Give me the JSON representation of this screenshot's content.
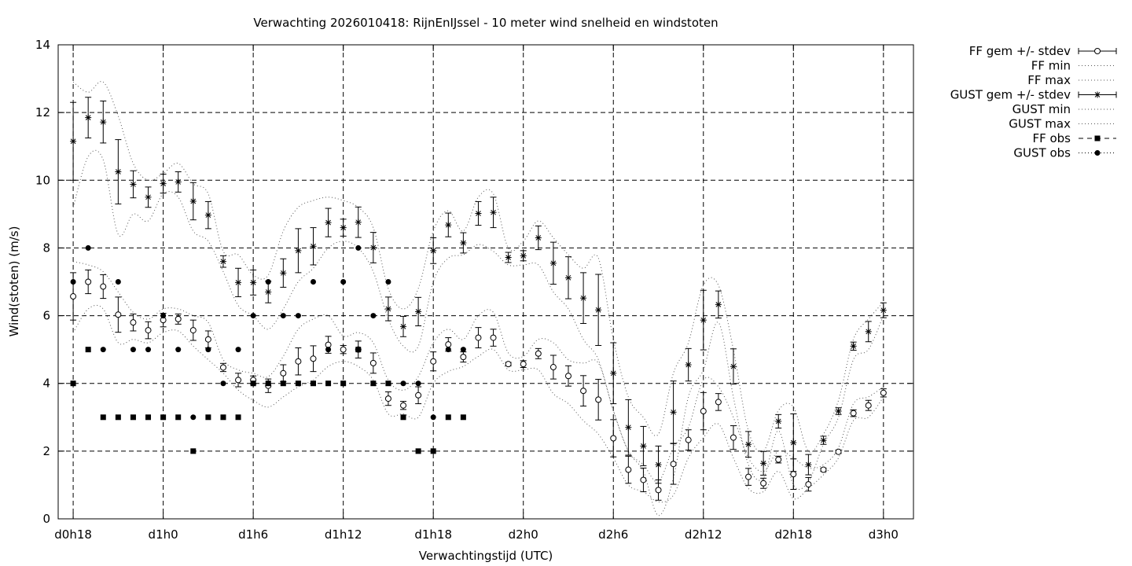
{
  "chart_data": {
    "type": "line",
    "title": "Verwachting 2026010418: RijnEnIJssel - 10 meter wind snelheid en windstoten",
    "xlabel": "Verwachtingstijd (UTC)",
    "ylabel": "Wind(stoten) (m/s)",
    "ylim": [
      0,
      14
    ],
    "yticks": [
      0,
      2,
      4,
      6,
      8,
      10,
      12,
      14
    ],
    "xlim": [
      17,
      74
    ],
    "xticks": [
      {
        "x": 18,
        "label": "d0h18"
      },
      {
        "x": 24,
        "label": "d1h0"
      },
      {
        "x": 30,
        "label": "d1h6"
      },
      {
        "x": 36,
        "label": "d1h12"
      },
      {
        "x": 42,
        "label": "d1h18"
      },
      {
        "x": 48,
        "label": "d2h0"
      },
      {
        "x": 54,
        "label": "d2h6"
      },
      {
        "x": 60,
        "label": "d2h12"
      },
      {
        "x": 66,
        "label": "d2h18"
      },
      {
        "x": 72,
        "label": "d3h0"
      }
    ],
    "grid": true,
    "legend_position": "outside-right",
    "legend": [
      {
        "label": "FF gem +/- stdev",
        "style": "errorbar-circle"
      },
      {
        "label": "FF min",
        "style": "dotted"
      },
      {
        "label": "FF max",
        "style": "dotted"
      },
      {
        "label": "GUST gem +/- stdev",
        "style": "errorbar-star"
      },
      {
        "label": "GUST min",
        "style": "dotted"
      },
      {
        "label": "GUST max",
        "style": "dotted"
      },
      {
        "label": "FF obs",
        "style": "square-dashed"
      },
      {
        "label": "GUST obs",
        "style": "dot-dotted"
      }
    ],
    "x": [
      18,
      19,
      20,
      21,
      22,
      23,
      24,
      25,
      26,
      27,
      28,
      29,
      30,
      31,
      32,
      33,
      34,
      35,
      36,
      37,
      38,
      39,
      40,
      41,
      42,
      43,
      44,
      45,
      46,
      47,
      48,
      49,
      50,
      51,
      52,
      53,
      54,
      55,
      56,
      57,
      58,
      59,
      60,
      61,
      62,
      63,
      64,
      65,
      66,
      67,
      68,
      69,
      70,
      71,
      72
    ],
    "series": [
      {
        "name": "FF gem +/- stdev",
        "values": [
          6.57,
          7.0,
          6.86,
          6.03,
          5.8,
          5.57,
          5.87,
          5.9,
          5.57,
          5.3,
          4.47,
          4.1,
          4.1,
          3.93,
          4.3,
          4.65,
          4.73,
          5.14,
          5.0,
          5.0,
          4.6,
          3.55,
          3.35,
          3.65,
          4.65,
          5.15,
          4.78,
          5.35,
          5.35,
          4.57,
          4.57,
          4.88,
          4.48,
          4.22,
          3.78,
          3.52,
          2.38,
          1.45,
          1.15,
          0.85,
          1.62,
          2.33,
          3.18,
          3.45,
          2.4,
          1.24,
          1.05,
          1.75,
          1.32,
          1.02,
          1.45,
          1.98,
          3.12,
          3.35,
          3.72
        ],
        "stdev": [
          0.7,
          0.35,
          0.35,
          0.52,
          0.25,
          0.25,
          0.2,
          0.15,
          0.3,
          0.25,
          0.12,
          0.2,
          0.12,
          0.2,
          0.25,
          0.4,
          0.38,
          0.25,
          0.12,
          0.25,
          0.3,
          0.2,
          0.12,
          0.25,
          0.28,
          0.2,
          0.15,
          0.3,
          0.25,
          0.05,
          0.1,
          0.15,
          0.35,
          0.3,
          0.45,
          0.6,
          0.55,
          0.4,
          0.35,
          0.3,
          0.6,
          0.3,
          0.55,
          0.25,
          0.35,
          0.25,
          0.15,
          0.1,
          0.45,
          0.2,
          0.05,
          0.05,
          0.1,
          0.15,
          0.12
        ]
      },
      {
        "name": "FF min",
        "values": [
          5.5,
          6.2,
          6.2,
          5.2,
          5.3,
          5.2,
          5.5,
          5.55,
          5.1,
          4.7,
          4.3,
          3.8,
          3.5,
          3.3,
          3.6,
          3.9,
          4.1,
          4.5,
          4.65,
          4.5,
          4.1,
          3.1,
          3.1,
          3.0,
          4.0,
          4.35,
          4.5,
          4.8,
          5.0,
          4.4,
          4.4,
          4.4,
          3.7,
          3.4,
          2.9,
          2.5,
          1.8,
          1.0,
          0.8,
          0.5,
          0.7,
          1.8,
          2.4,
          2.8,
          1.8,
          0.9,
          0.8,
          1.4,
          0.6,
          0.9,
          1.3,
          1.8,
          2.9,
          3.0,
          3.6
        ]
      },
      {
        "name": "FF max",
        "values": [
          7.6,
          7.5,
          7.3,
          6.7,
          6.1,
          5.9,
          6.2,
          6.2,
          6.0,
          5.8,
          4.7,
          4.4,
          4.3,
          4.2,
          4.8,
          5.6,
          5.9,
          6.0,
          5.4,
          5.5,
          5.2,
          4.1,
          3.8,
          4.2,
          5.2,
          5.6,
          5.3,
          6.0,
          6.1,
          4.9,
          4.8,
          5.3,
          5.2,
          4.7,
          4.6,
          4.6,
          3.2,
          2.0,
          1.6,
          1.1,
          2.1,
          2.7,
          4.1,
          3.9,
          3.0,
          1.8,
          1.4,
          2.0,
          1.8,
          1.5,
          1.6,
          2.1,
          3.4,
          3.6,
          3.9
        ]
      },
      {
        "name": "GUST gem +/- stdev",
        "values": [
          11.15,
          11.85,
          11.72,
          10.25,
          9.88,
          9.5,
          9.9,
          9.95,
          9.38,
          8.97,
          7.6,
          6.98,
          6.98,
          6.7,
          7.26,
          7.92,
          8.05,
          8.75,
          8.6,
          8.76,
          8.01,
          6.2,
          5.68,
          6.12,
          7.92,
          8.68,
          8.15,
          9.02,
          9.05,
          7.72,
          7.77,
          8.3,
          7.55,
          7.12,
          6.52,
          6.17,
          4.3,
          2.7,
          2.15,
          1.6,
          3.15,
          4.55,
          5.87,
          6.33,
          4.5,
          2.2,
          1.64,
          2.88,
          2.25,
          1.6,
          2.32,
          3.18,
          5.1,
          5.53,
          6.16
        ],
        "stdev": [
          1.15,
          0.6,
          0.62,
          0.95,
          0.4,
          0.3,
          0.28,
          0.3,
          0.55,
          0.4,
          0.17,
          0.42,
          0.37,
          0.32,
          0.42,
          0.65,
          0.55,
          0.42,
          0.25,
          0.45,
          0.45,
          0.35,
          0.3,
          0.42,
          0.38,
          0.35,
          0.3,
          0.35,
          0.45,
          0.15,
          0.15,
          0.35,
          0.62,
          0.62,
          0.75,
          1.05,
          0.9,
          0.82,
          0.58,
          0.55,
          0.92,
          0.48,
          0.88,
          0.4,
          0.52,
          0.38,
          0.35,
          0.2,
          0.85,
          0.3,
          0.12,
          0.1,
          0.12,
          0.3,
          0.22
        ]
      },
      {
        "name": "GUST min",
        "values": [
          9.2,
          10.7,
          10.6,
          8.4,
          9.0,
          8.8,
          9.6,
          9.5,
          8.5,
          8.2,
          7.3,
          6.3,
          6.0,
          5.6,
          6.2,
          7.0,
          7.4,
          8.0,
          8.2,
          8.0,
          7.3,
          5.9,
          5.1,
          5.1,
          7.0,
          7.7,
          7.8,
          8.1,
          7.9,
          7.5,
          7.5,
          7.5,
          6.7,
          6.2,
          5.3,
          4.7,
          3.2,
          2.0,
          1.4,
          0.1,
          1.2,
          3.6,
          4.4,
          5.8,
          3.6,
          1.6,
          1.2,
          2.6,
          1.0,
          1.1,
          2.2,
          3.0,
          4.7,
          5.0,
          6.0
        ]
      },
      {
        "name": "GUST max",
        "values": [
          12.9,
          12.6,
          12.9,
          11.9,
          10.5,
          10.0,
          10.2,
          10.5,
          9.9,
          9.6,
          7.9,
          7.8,
          7.2,
          7.2,
          8.5,
          9.2,
          9.4,
          9.5,
          9.4,
          9.2,
          8.6,
          6.8,
          6.2,
          6.8,
          8.5,
          9.1,
          8.5,
          9.5,
          9.6,
          8.0,
          8.2,
          8.8,
          8.3,
          7.8,
          7.4,
          7.7,
          5.3,
          3.6,
          3.0,
          2.5,
          4.3,
          5.2,
          6.9,
          6.9,
          5.0,
          2.6,
          2.0,
          3.2,
          3.3,
          2.0,
          2.5,
          3.5,
          5.3,
          5.9,
          6.4
        ]
      },
      {
        "name": "FF obs",
        "x": [
          18,
          19,
          20,
          21,
          22,
          23,
          24,
          25,
          26,
          27,
          28,
          29,
          30,
          31,
          32,
          33,
          34,
          35,
          36,
          37,
          38,
          39,
          40,
          41,
          42,
          43,
          44
        ],
        "values": [
          4,
          5,
          3,
          3,
          3,
          3,
          3,
          3,
          2,
          3,
          3,
          3,
          4,
          4,
          4,
          4,
          4,
          4,
          4,
          5,
          4,
          4,
          3,
          2,
          2,
          3,
          3
        ]
      },
      {
        "name": "GUST obs",
        "x": [
          18,
          19,
          20,
          21,
          22,
          23,
          24,
          25,
          26,
          27,
          28,
          29,
          30,
          31,
          32,
          33,
          34,
          35,
          36,
          37,
          38,
          39,
          40,
          41,
          42,
          43,
          44
        ],
        "values": [
          7,
          8,
          5,
          7,
          5,
          5,
          6,
          5,
          3,
          5,
          4,
          5,
          6,
          7,
          6,
          6,
          7,
          5,
          7,
          8,
          6,
          7,
          4,
          4,
          3,
          5,
          5
        ]
      }
    ]
  }
}
